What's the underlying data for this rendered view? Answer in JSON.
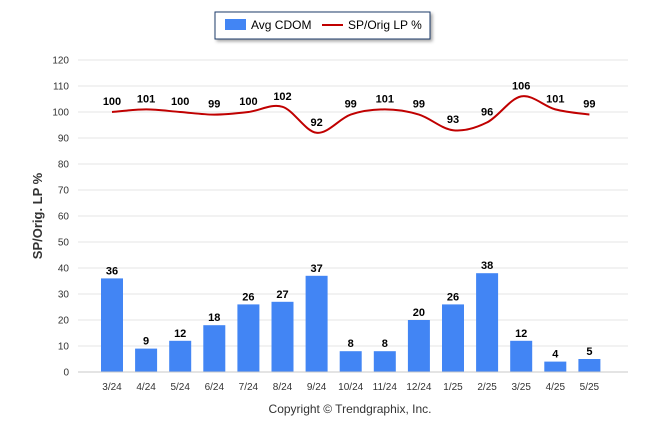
{
  "chart_data": {
    "type": "bar",
    "categories": [
      "3/24",
      "4/24",
      "5/24",
      "6/24",
      "7/24",
      "8/24",
      "9/24",
      "10/24",
      "11/24",
      "12/24",
      "1/25",
      "2/25",
      "3/25",
      "4/25",
      "5/25"
    ],
    "series": [
      {
        "name": "Avg CDOM",
        "type": "bar",
        "color": "#4285f4",
        "values": [
          36,
          9,
          12,
          18,
          26,
          27,
          37,
          8,
          8,
          20,
          26,
          38,
          12,
          4,
          5
        ]
      },
      {
        "name": "SP/Orig LP %",
        "type": "line",
        "color": "#c00000",
        "values": [
          100,
          101,
          100,
          99,
          100,
          102,
          92,
          99,
          101,
          99,
          93,
          96,
          106,
          101,
          99
        ]
      }
    ],
    "ylabel": "SP/Orig. LP %",
    "ylim": [
      0,
      120
    ],
    "yticks": [
      0,
      10,
      20,
      30,
      40,
      50,
      60,
      70,
      80,
      90,
      100,
      110,
      120
    ],
    "grid": true,
    "legend_position": "top-center",
    "footer": "Copyright © Trendgraphix, Inc."
  }
}
